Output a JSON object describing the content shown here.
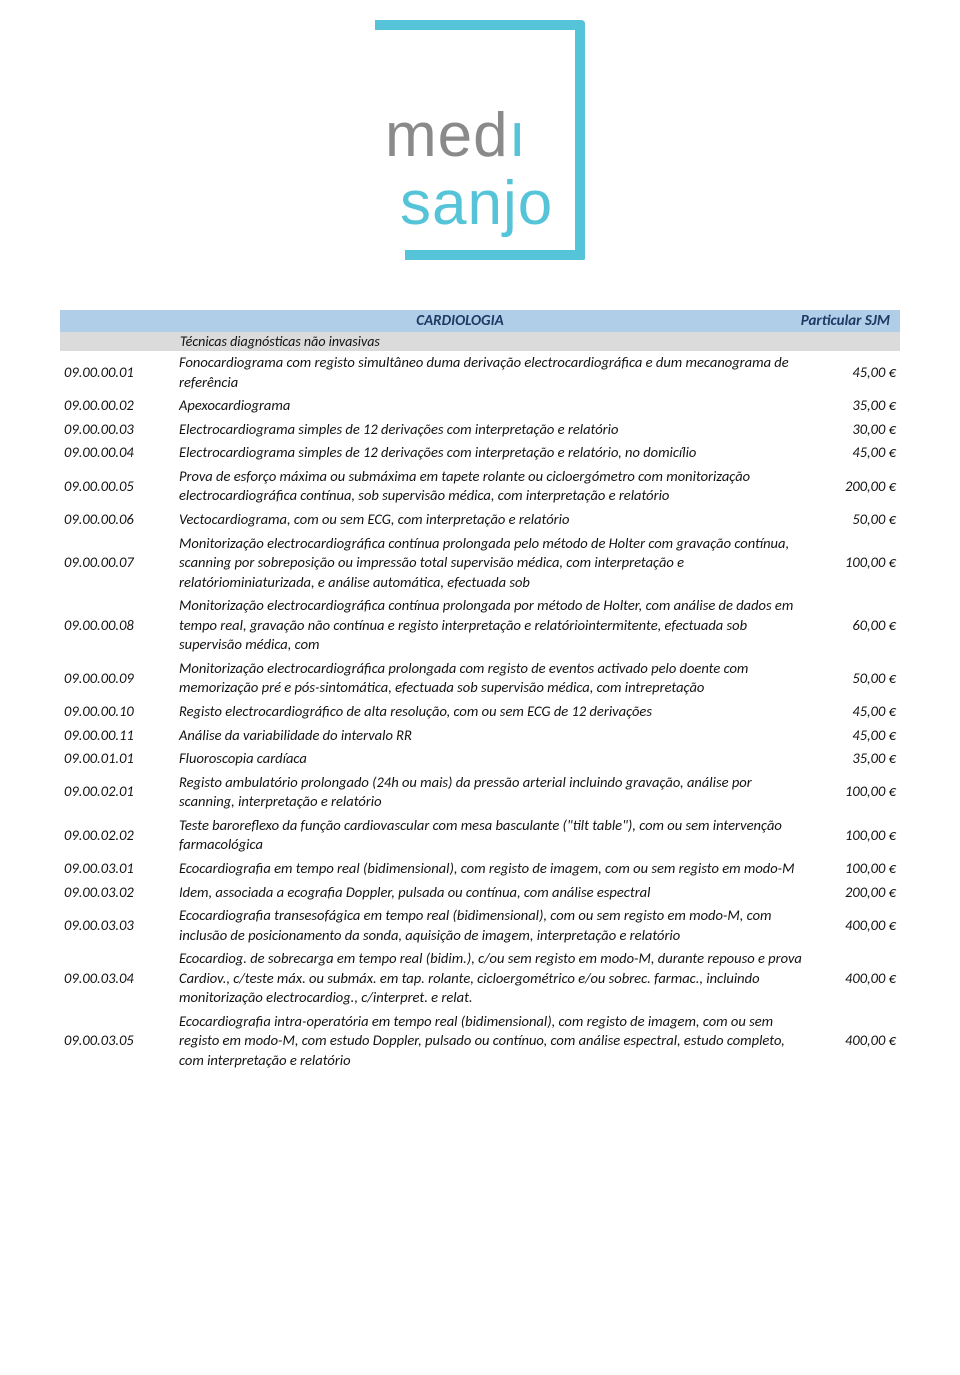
{
  "logo": {
    "line1": "medı",
    "line2": "sanjo"
  },
  "header": {
    "title": "CARDIOLOGIA",
    "price_col": "Particular SJM"
  },
  "section": "Técnicas diagnósticas não invasivas",
  "rows": [
    {
      "code": "09.00.00.01",
      "desc": "Fonocardiograma com registo simultâneo duma derivação electrocardiográfica e dum mecanograma de referência",
      "price": "45,00 €"
    },
    {
      "code": "09.00.00.02",
      "desc": "Apexocardiograma",
      "price": "35,00 €"
    },
    {
      "code": "09.00.00.03",
      "desc": "Electrocardiograma simples de 12 derivações com interpretação e relatório",
      "price": "30,00 €"
    },
    {
      "code": "09.00.00.04",
      "desc": "Electrocardiograma simples de 12 derivações com interpretação e relatório, no domicílio",
      "price": "45,00 €"
    },
    {
      "code": "09.00.00.05",
      "desc": "Prova de esforço máxima ou submáxima em tapete rolante ou cicloergómetro com monitorização electrocardiográfica contínua, sob supervisão médica, com interpretação e relatório",
      "price": "200,00 €"
    },
    {
      "code": "09.00.00.06",
      "desc": "Vectocardiograma, com ou sem ECG, com interpretação e relatório",
      "price": "50,00 €"
    },
    {
      "code": "09.00.00.07",
      "desc": "Monitorização electrocardiográfica contínua prolongada pelo método de Holter com gravação contínua, scanning por sobreposição ou impressão total supervisão médica, com interpretação e relatóriominiaturizada, e análise automática, efectuada sob",
      "price": "100,00 €"
    },
    {
      "code": "09.00.00.08",
      "desc": "Monitorização electrocardiográfica contínua prolongada por método de Holter, com análise de dados em tempo real, gravação não contínua e registo interpretação e relatóriointermitente, efectuada sob supervisão médica, com",
      "price": "60,00 €"
    },
    {
      "code": "09.00.00.09",
      "desc": "Monitorização electrocardiográfica prolongada com registo de eventos activado pelo doente com memorização pré e pós-sintomática, efectuada sob supervisão médica, com intrepretação",
      "price": "50,00 €"
    },
    {
      "code": "09.00.00.10",
      "desc": "Registo electrocardiográfico de alta resolução, com ou sem ECG de 12 derivações",
      "price": "45,00 €"
    },
    {
      "code": "09.00.00.11",
      "desc": "Análise da variabilidade do intervalo RR",
      "price": "45,00 €"
    },
    {
      "code": "09.00.01.01",
      "desc": "Fluoroscopia cardíaca",
      "price": "35,00 €"
    },
    {
      "code": "09.00.02.01",
      "desc": "Registo ambulatório prolongado (24h ou mais) da pressão arterial incluindo gravação, análise por scanning, interpretação e relatório",
      "price": "100,00 €"
    },
    {
      "code": "09.00.02.02",
      "desc": "Teste baroreflexo da função cardiovascular com mesa basculante (\"tilt table\"), com ou sem intervenção farmacológica",
      "price": "100,00 €"
    },
    {
      "code": "09.00.03.01",
      "desc": " Ecocardiografia em tempo real (bidimensional), com registo de imagem, com ou sem registo em modo-M",
      "price": "100,00 €"
    },
    {
      "code": "09.00.03.02",
      "desc": " Idem, associada a ecografia Doppler, pulsada ou contínua, com análise espectral",
      "price": "200,00 €"
    },
    {
      "code": "09.00.03.03",
      "desc": "Ecocardiografia transesofágica em tempo real (bidimensional), com ou sem registo em modo-M, com inclusão de posicionamento da sonda, aquisição de imagem, interpretação e relatório",
      "price": "400,00 €",
      "spaced": true
    },
    {
      "code": "09.00.03.04",
      "desc": "Ecocardiog. de sobrecarga em tempo real (bidim.), c/ou sem registo em modo-M, durante repouso e prova Cardiov., c/teste máx. ou submáx. em tap. rolante, cicloergométrico e/ou sobrec. farmac., incluindo monitorização electrocardiog., c/interpret. e relat.",
      "price": "400,00 €",
      "spaced": true
    },
    {
      "code": "09.00.03.05",
      "desc": "Ecocardiografia intra-operatória em tempo real (bidimensional), com registo de imagem, com ou sem registo em modo-M, com estudo Doppler, pulsado ou contínuo, com análise espectral, estudo completo, com interpretação e relatório",
      "price": "400,00 €"
    }
  ],
  "colors": {
    "header_bg": "#b0cee8",
    "header_text": "#203864",
    "section_bg": "#dbdbdb",
    "brand": "#56c4d8"
  }
}
